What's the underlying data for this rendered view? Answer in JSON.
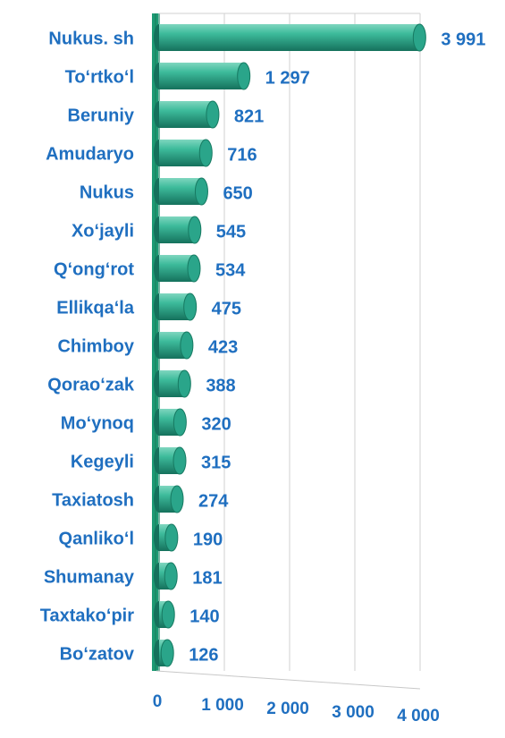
{
  "chart_data": {
    "type": "bar",
    "orientation": "horizontal",
    "categories": [
      "Nukus. sh",
      "To‘rtko‘l",
      "Beruniy",
      "Amudaryo",
      "Nukus",
      "Xo‘jayli",
      "Q‘ong‘rot",
      "Ellikqa‘la",
      "Chimboy",
      "Qorao‘zak",
      "Mo‘ynoq",
      "Kegeyli",
      "Taxiatosh",
      "Qanliko‘l",
      "Shumanay",
      "Taxtako‘pir",
      "Bo‘zatov"
    ],
    "values": [
      3991,
      1297,
      821,
      716,
      650,
      545,
      534,
      475,
      423,
      388,
      320,
      315,
      274,
      190,
      181,
      140,
      126
    ],
    "value_labels": [
      "3 991",
      "1 297",
      "821",
      "716",
      "650",
      "545",
      "534",
      "475",
      "423",
      "388",
      "320",
      "315",
      "274",
      "190",
      "181",
      "140",
      "126"
    ],
    "color": "#2aa58a",
    "label_color": "#1f6fc0",
    "xlim": [
      0,
      4000
    ],
    "xticks": [
      0,
      {
        "value": 1000,
        "label": "1 000"
      },
      {
        "value": 2000,
        "label": "2 000"
      },
      {
        "value": 3000,
        "label": "3 000"
      },
      {
        "value": 4000,
        "label": "4 000"
      }
    ],
    "grid": true
  }
}
